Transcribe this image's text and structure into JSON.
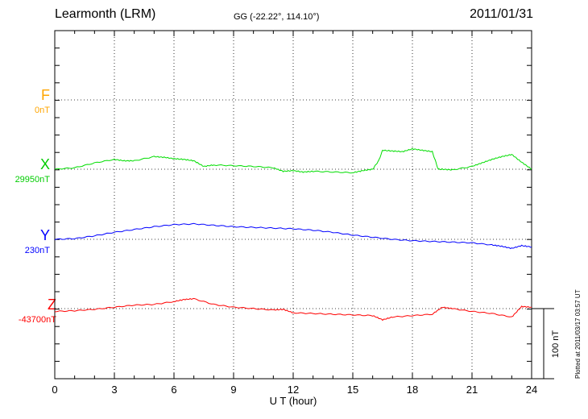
{
  "header": {
    "station": "Learmonth (LRM)",
    "coords": "GG (-22.22°, 114.10°)",
    "date": "2011/01/31"
  },
  "plotted_note": "Plotted at 2011/03/17 03:57 UT",
  "chart_data": {
    "type": "line",
    "title": "Learmonth (LRM)",
    "xlabel": "U T (hour)",
    "xlim": [
      0,
      24
    ],
    "xticks": [
      "0",
      "3",
      "6",
      "9",
      "12",
      "15",
      "18",
      "21",
      "24"
    ],
    "grid": true,
    "scale_bar": "100 nT",
    "colors": {
      "F": "#ffa500",
      "X": "#00dd00",
      "Y": "#0000ff",
      "Z": "#ff0000"
    },
    "series": [
      {
        "name": "F",
        "baseline": "0nT",
        "x": [],
        "y": []
      },
      {
        "name": "X",
        "baseline": "29950nT",
        "x": [
          0,
          1,
          2,
          3,
          3.5,
          4,
          5,
          5.5,
          6,
          6.5,
          7,
          7.5,
          8,
          9,
          10,
          11,
          11.5,
          12,
          12.5,
          13,
          14,
          15,
          15.5,
          16,
          16.3,
          16.5,
          17,
          17.5,
          18,
          18.5,
          19,
          19.3,
          19.5,
          20,
          21,
          21.5,
          22,
          22.5,
          23,
          23.5,
          24
        ],
        "y": [
          0,
          2,
          9,
          14,
          12,
          12,
          18,
          17,
          15,
          14,
          12,
          4,
          6,
          5,
          4,
          2,
          -3,
          -2,
          -4,
          -3,
          -4,
          -5,
          -2,
          0,
          12,
          27,
          26,
          25,
          29,
          27,
          25,
          0,
          0,
          -1,
          4,
          9,
          14,
          18,
          21,
          10,
          0
        ]
      },
      {
        "name": "Y",
        "baseline": "230nT",
        "x": [
          0,
          1,
          2,
          3,
          4,
          5,
          6,
          7,
          8,
          9,
          10,
          11,
          12,
          13,
          14,
          15,
          16,
          17,
          18,
          19,
          20,
          21,
          22,
          22.5,
          23,
          23.5,
          24
        ],
        "y": [
          0,
          1,
          5,
          10,
          14,
          18,
          21,
          22,
          20,
          18,
          17,
          16,
          15,
          13,
          10,
          6,
          3,
          0,
          -2,
          -3,
          -4,
          -5,
          -8,
          -10,
          -13,
          -9,
          -11
        ]
      },
      {
        "name": "Z",
        "baseline": "-43700nT",
        "x": [
          0,
          1,
          2,
          3,
          4,
          5,
          6,
          6.5,
          7,
          8,
          9,
          10,
          11,
          11.5,
          12,
          13,
          14,
          15,
          16,
          16.5,
          17,
          18,
          19,
          19.5,
          20,
          21,
          22,
          23,
          23.5,
          24
        ],
        "y": [
          -4,
          -3,
          -1,
          2,
          5,
          6,
          10,
          13,
          14,
          6,
          2,
          0,
          -2,
          -1,
          -6,
          -7,
          -8,
          -9,
          -10,
          -16,
          -12,
          -10,
          -8,
          2,
          0,
          -4,
          -7,
          -12,
          3,
          2
        ]
      }
    ]
  }
}
